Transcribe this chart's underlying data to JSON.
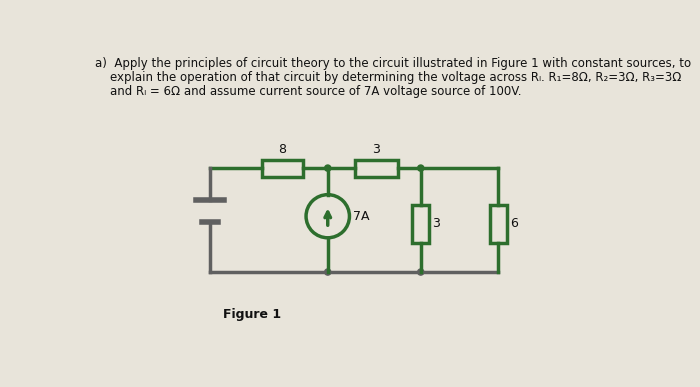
{
  "title_line1": "a)  Apply the principles of circuit theory to the circuit illustrated in Figure 1 with constant sources, to",
  "title_line2": "    explain the operation of that circuit by determining the voltage across Rₗ. R₁=8Ω, R₂=3Ω, R₃=3Ω",
  "title_line3": "    and Rₗ = 6Ω and assume current source of 7A voltage source of 100V.",
  "bg_color": "#e8e4da",
  "wire_green": "#2d6e2d",
  "wire_gray": "#606060",
  "text_color": "#111111",
  "figure_label": "Figure 1",
  "r1_label": "8",
  "r2_label": "3",
  "r3_label": "3",
  "rl_label": "6",
  "cs_label": "7A"
}
